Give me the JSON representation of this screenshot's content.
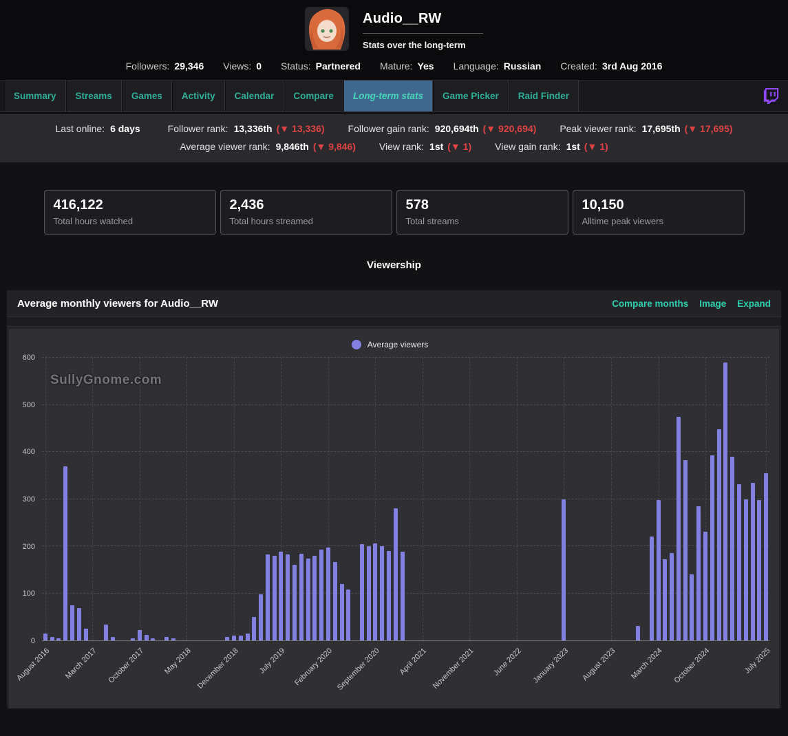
{
  "header": {
    "channel_name": "Audio__RW",
    "subtitle": "Stats over the long-term",
    "stats": [
      {
        "label": "Followers:",
        "value": "29,346"
      },
      {
        "label": "Views:",
        "value": "0"
      },
      {
        "label": "Status:",
        "value": "Partnered"
      },
      {
        "label": "Mature:",
        "value": "Yes"
      },
      {
        "label": "Language:",
        "value": "Russian"
      },
      {
        "label": "Created:",
        "value": "3rd Aug 2016"
      }
    ]
  },
  "tabs": [
    {
      "label": "Summary",
      "active": false
    },
    {
      "label": "Streams",
      "active": false
    },
    {
      "label": "Games",
      "active": false
    },
    {
      "label": "Activity",
      "active": false
    },
    {
      "label": "Calendar",
      "active": false
    },
    {
      "label": "Compare",
      "active": false
    },
    {
      "label": "Long-term stats",
      "active": true
    },
    {
      "label": "Game Picker",
      "active": false
    },
    {
      "label": "Raid Finder",
      "active": false
    }
  ],
  "rank_bar": {
    "line1": [
      {
        "label": "Last online:",
        "value": "6 days",
        "delta": ""
      },
      {
        "label": "Follower rank:",
        "value": "13,336th",
        "delta": "(▼ 13,336)"
      },
      {
        "label": "Follower gain rank:",
        "value": "920,694th",
        "delta": "(▼ 920,694)"
      },
      {
        "label": "Peak viewer rank:",
        "value": "17,695th",
        "delta": "(▼ 17,695)"
      }
    ],
    "line2": [
      {
        "label": "Average viewer rank:",
        "value": "9,846th",
        "delta": "(▼ 9,846)"
      },
      {
        "label": "View rank:",
        "value": "1st",
        "delta": "(▼ 1)"
      },
      {
        "label": "View gain rank:",
        "value": "1st",
        "delta": "(▼ 1)"
      }
    ]
  },
  "summary_cards": [
    {
      "value": "416,122",
      "label": "Total hours watched"
    },
    {
      "value": "2,436",
      "label": "Total hours streamed"
    },
    {
      "value": "578",
      "label": "Total streams"
    },
    {
      "value": "10,150",
      "label": "Alltime peak viewers"
    }
  ],
  "section_title": "Viewership",
  "chart_panel": {
    "title": "Average monthly viewers for Audio__RW",
    "links": [
      "Compare months",
      "Image",
      "Expand"
    ],
    "legend": "Average viewers",
    "watermark": "SullyGnome.com"
  },
  "colors": {
    "accent_teal": "#2fae96",
    "active_tab_bg": "#40688f",
    "bar_purple": "#8280e0",
    "negative_red": "#e04343",
    "twitch_purple": "#9146ff"
  },
  "chart_data": {
    "type": "bar",
    "title": "Average monthly viewers for Audio__RW",
    "ylabel": "Average viewers",
    "ylim": [
      0,
      600
    ],
    "yticks": [
      0,
      100,
      200,
      300,
      400,
      500,
      600
    ],
    "x_monthly_range": {
      "start": "August 2016",
      "end": "July 2025"
    },
    "x_tick_labels": [
      "August 2016",
      "March 2017",
      "October 2017",
      "May 2018",
      "December 2018",
      "July 2019",
      "February 2020",
      "September 2020",
      "April 2021",
      "November 2021",
      "June 2022",
      "January 2023",
      "August 2023",
      "March 2024",
      "October 2024",
      "July 2025"
    ],
    "x_tick_indices": [
      0,
      7,
      14,
      21,
      28,
      35,
      42,
      49,
      56,
      63,
      70,
      77,
      84,
      91,
      98,
      107
    ],
    "values": [
      15,
      8,
      4,
      370,
      75,
      68,
      25,
      0,
      0,
      33,
      8,
      0,
      0,
      4,
      22,
      12,
      4,
      0,
      7,
      4,
      0,
      0,
      0,
      0,
      0,
      0,
      0,
      8,
      10,
      10,
      14,
      50,
      98,
      183,
      180,
      188,
      182,
      160,
      184,
      174,
      180,
      193,
      197,
      166,
      120,
      108,
      0,
      205,
      200,
      206,
      200,
      190,
      280,
      188,
      0,
      0,
      0,
      0,
      0,
      0,
      0,
      0,
      0,
      0,
      0,
      0,
      0,
      0,
      0,
      0,
      0,
      0,
      0,
      0,
      0,
      0,
      0,
      300,
      0,
      0,
      0,
      0,
      0,
      0,
      0,
      0,
      0,
      0,
      30,
      0,
      220,
      298,
      172,
      185,
      475,
      382,
      140,
      285,
      230,
      392,
      448,
      590,
      390,
      332,
      300,
      335,
      298,
      355
    ],
    "bar_color": "#8280e0",
    "legend_entries": [
      "Average viewers"
    ],
    "grid": "dashed"
  }
}
